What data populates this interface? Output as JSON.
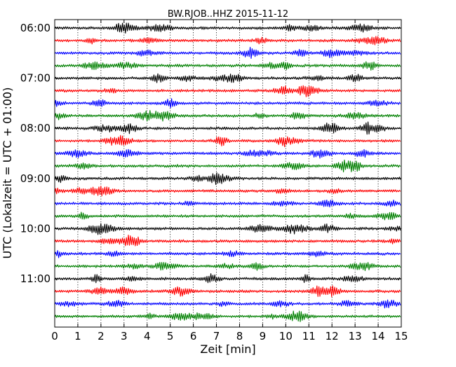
{
  "chart_data": {
    "type": "line",
    "title": "BW.RJOB..HHZ 2015-11-12",
    "xlabel": "Zeit  [min]",
    "ylabel": "UTC (Lokalzeit = UTC + 01:00)",
    "xlim": [
      0,
      15
    ],
    "x_ticks": [
      "0",
      "1",
      "2",
      "3",
      "4",
      "5",
      "6",
      "7",
      "8",
      "9",
      "10",
      "11",
      "12",
      "13",
      "14",
      "15"
    ],
    "y_ticks": [
      "06:00",
      "07:00",
      "08:00",
      "09:00",
      "10:00",
      "11:00"
    ],
    "grid": "vertical dotted lines at each minute",
    "row_interval_minutes": 15,
    "rows_per_tick_label": 4,
    "colors": [
      "#000000",
      "#ff0000",
      "#0000ff",
      "#008000"
    ],
    "series": [
      {
        "start_utc": "06:00"
      },
      {
        "start_utc": "06:15"
      },
      {
        "start_utc": "06:30"
      },
      {
        "start_utc": "06:45"
      },
      {
        "start_utc": "07:00"
      },
      {
        "start_utc": "07:15"
      },
      {
        "start_utc": "07:30"
      },
      {
        "start_utc": "07:45"
      },
      {
        "start_utc": "08:00"
      },
      {
        "start_utc": "08:15"
      },
      {
        "start_utc": "08:30"
      },
      {
        "start_utc": "08:45"
      },
      {
        "start_utc": "09:00"
      },
      {
        "start_utc": "09:15"
      },
      {
        "start_utc": "09:30"
      },
      {
        "start_utc": "09:45"
      },
      {
        "start_utc": "10:00"
      },
      {
        "start_utc": "10:15"
      },
      {
        "start_utc": "10:30"
      },
      {
        "start_utc": "10:45"
      },
      {
        "start_utc": "11:00"
      },
      {
        "start_utc": "11:15"
      },
      {
        "start_utc": "11:30"
      },
      {
        "start_utc": "11:45"
      }
    ]
  }
}
